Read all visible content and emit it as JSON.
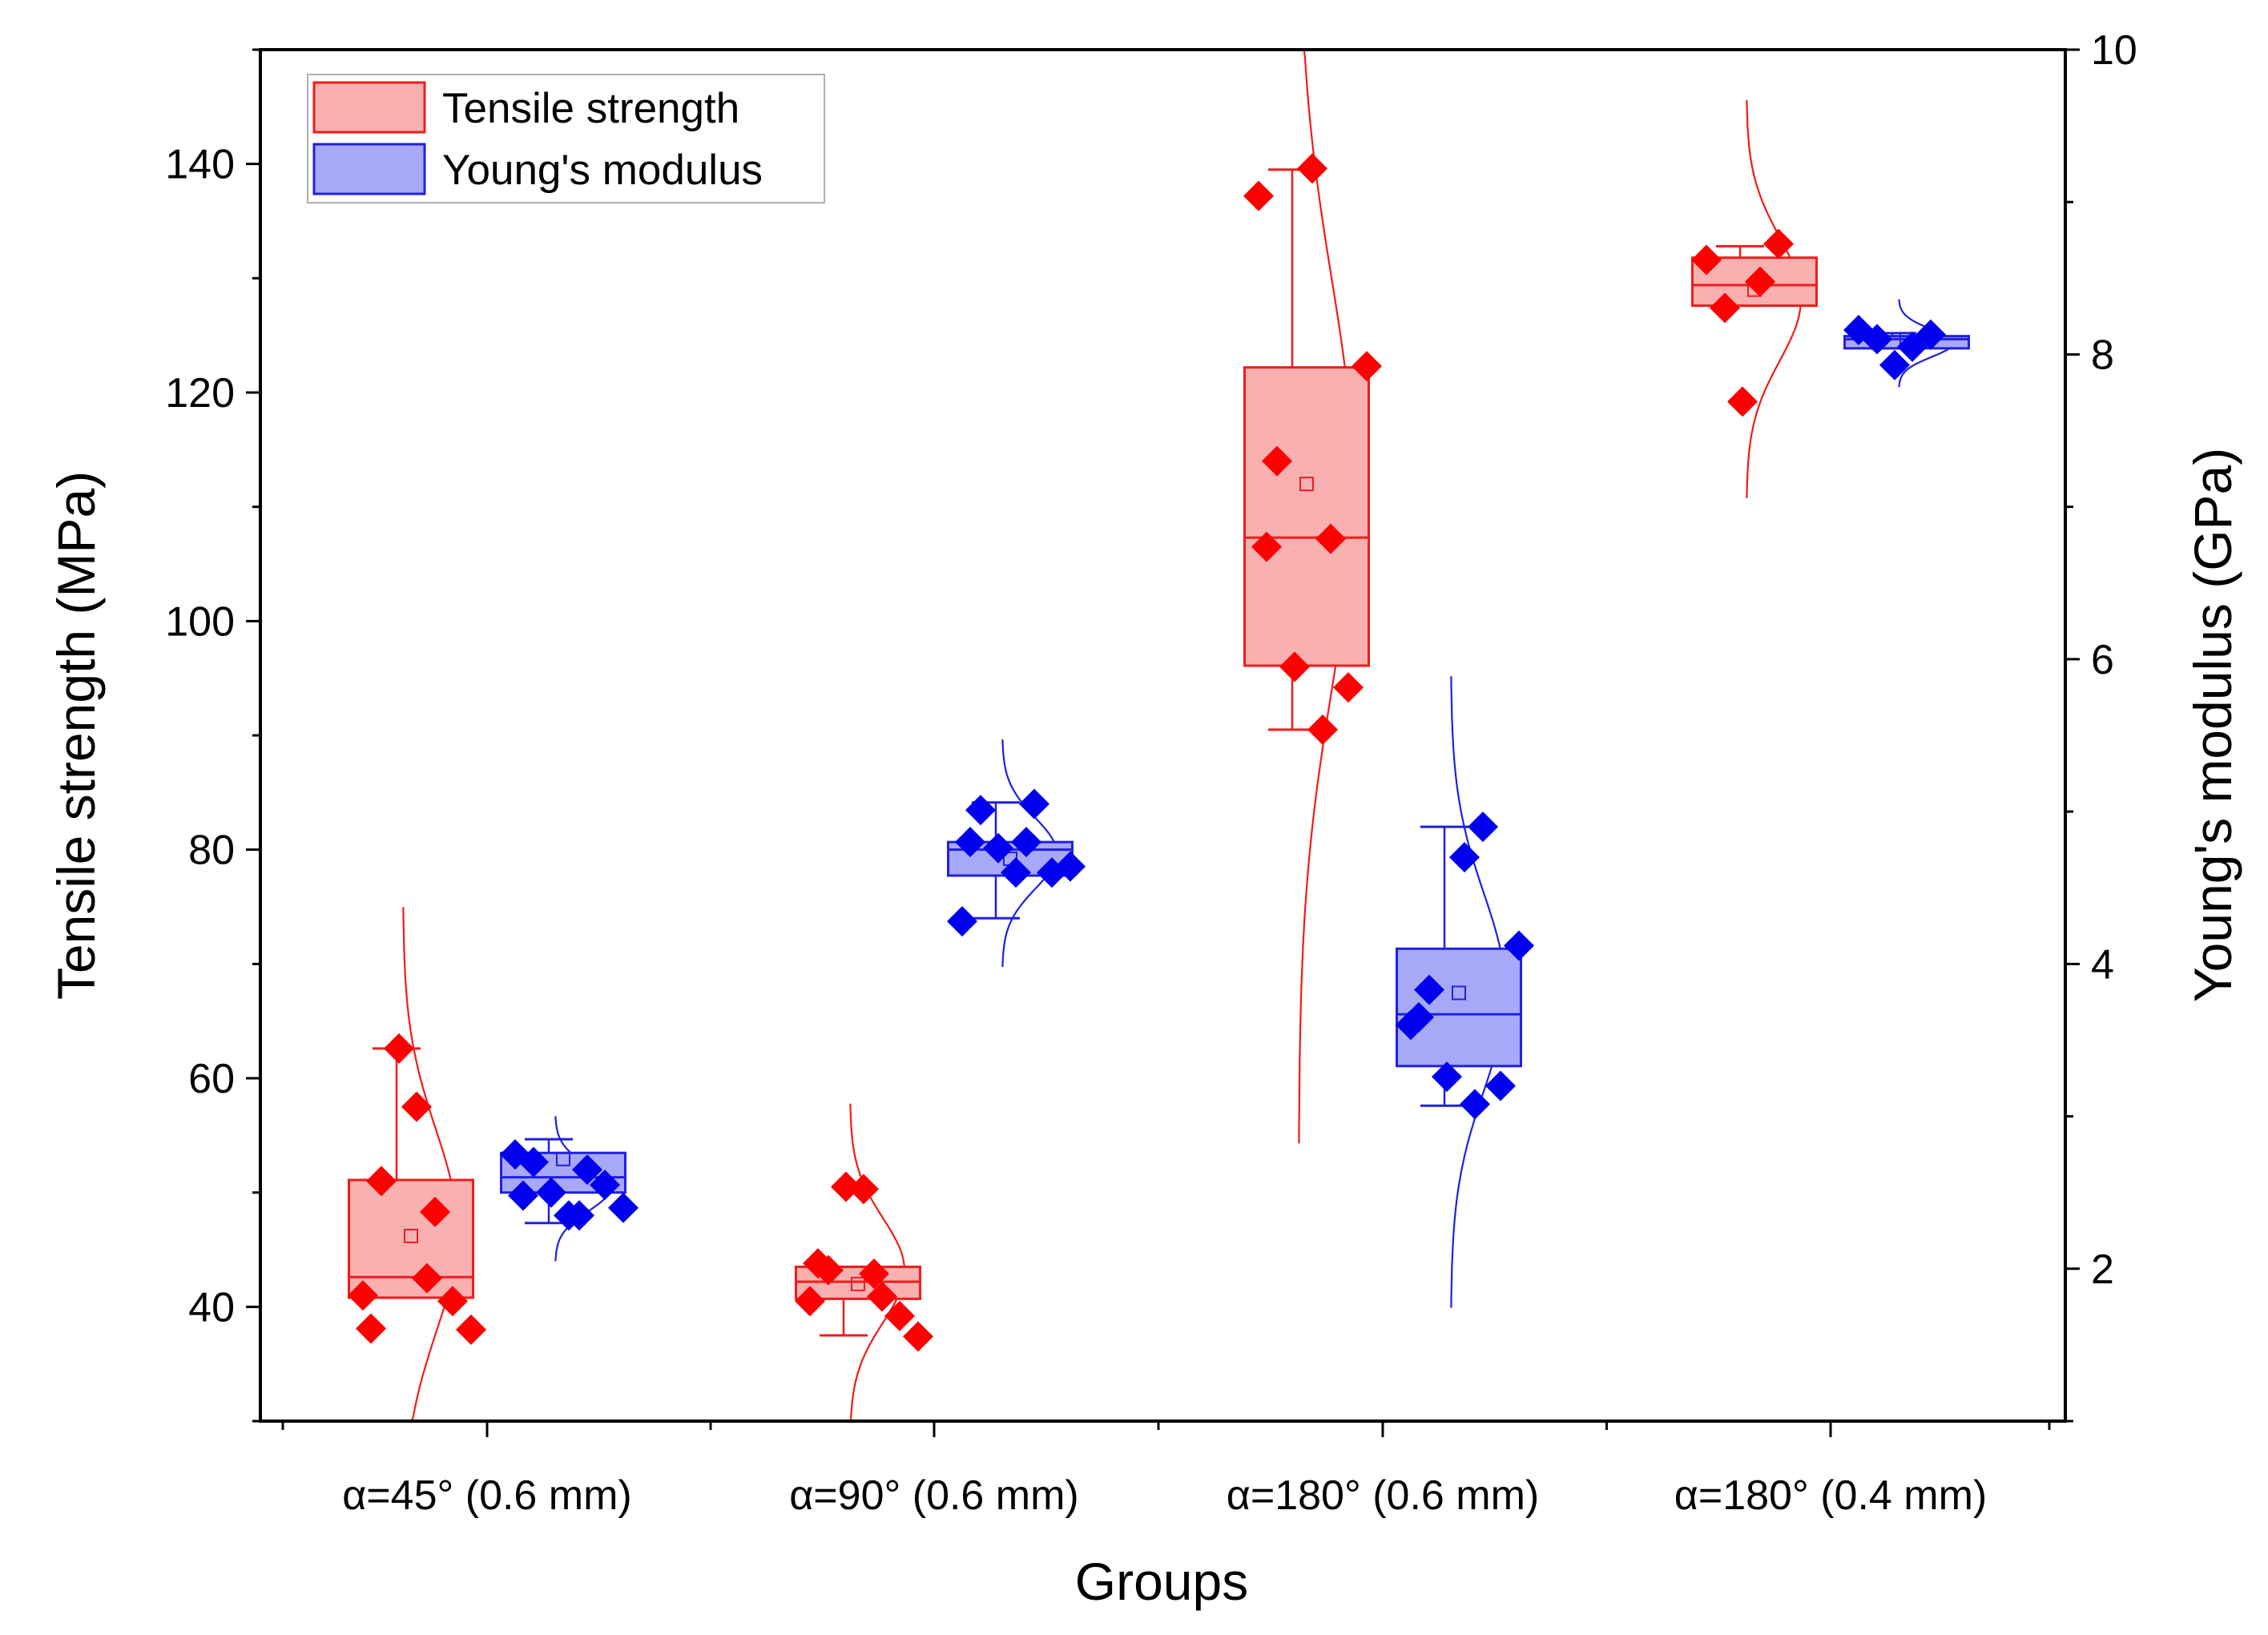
{
  "chart_data": {
    "type": "box",
    "title": "",
    "xlabel": "Groups",
    "ylabel_left": "Tensile strength (MPa)",
    "ylabel_right": "Young's modulus (GPa)",
    "ylim_left": [
      30,
      150
    ],
    "ylim_right": [
      1,
      10
    ],
    "yticks_left": [
      "40",
      "60",
      "80",
      "100",
      "120",
      "140"
    ],
    "yticks_right": [
      "2",
      "4",
      "6",
      "8",
      "10"
    ],
    "legend_position": "top-left",
    "colors": {
      "tensile_fill": "#f8b0b0",
      "tensile_line": "#f01c1c",
      "tensile_marker": "#ff0000",
      "modulus_fill": "#a8a8f8",
      "modulus_line": "#2020e0",
      "modulus_marker": "#0000ee"
    },
    "categories": [
      "α=45° (0.6 mm)",
      "α=90° (0.6 mm)",
      "α=180° (0.6 mm)",
      "α=180° (0.4 mm)"
    ],
    "series": [
      {
        "name": "Tensile strength",
        "axis": "left",
        "boxes": [
          {
            "q1": 40.8,
            "median": 42.6,
            "q3": 51.1,
            "mean": 46.2,
            "whisker_low": 40.8,
            "whisker_high": 62.6,
            "points": [
              41.0,
              51.0,
              62.6,
              57.5,
              48.3,
              40.5,
              38.0,
              38.1,
              42.5
            ]
          },
          {
            "q1": 40.7,
            "median": 42.2,
            "q3": 43.5,
            "mean": 42.0,
            "whisker_low": 37.5,
            "whisker_high": 43.5,
            "points": [
              40.5,
              43.2,
              50.5,
              50.3,
              40.9,
              39.2,
              37.4,
              43.8,
              42.9
            ]
          },
          {
            "q1": 96.1,
            "median": 107.3,
            "q3": 122.2,
            "mean": 112.0,
            "whisker_low": 90.5,
            "whisker_high": 139.5,
            "points": [
              137.2,
              114.0,
              96.0,
              139.6,
              107.2,
              94.2,
              122.3,
              106.5,
              90.5
            ]
          },
          {
            "q1": 127.6,
            "median": 129.4,
            "q3": 131.8,
            "mean": 129.0,
            "whisker_low": 127.6,
            "whisker_high": 132.8,
            "points": [
              131.6,
              127.4,
              119.2,
              129.7,
              133.0
            ]
          }
        ]
      },
      {
        "name": "Young's modulus",
        "axis": "right",
        "boxes": [
          {
            "q1": 2.5,
            "median": 2.6,
            "q3": 2.76,
            "mean": 2.72,
            "whisker_low": 2.3,
            "whisker_high": 2.85,
            "points": [
              2.75,
              2.7,
              2.5,
              2.35,
              2.65,
              2.55,
              2.4,
              2.48,
              2.35
            ]
          },
          {
            "q1": 4.58,
            "median": 4.75,
            "q3": 4.8,
            "mean": 4.69,
            "whisker_low": 4.3,
            "whisker_high": 5.06,
            "points": [
              4.28,
              5.01,
              4.76,
              4.6,
              5.05,
              4.6,
              4.64,
              4.8,
              4.8
            ]
          },
          {
            "q1": 3.33,
            "median": 3.67,
            "q3": 4.1,
            "mean": 3.81,
            "whisker_low": 3.07,
            "whisker_high": 4.9,
            "points": [
              3.6,
              3.83,
              3.26,
              4.7,
              4.9,
              3.2,
              4.12,
              3.65,
              3.08
            ]
          },
          {
            "q1": 8.04,
            "median": 8.1,
            "q3": 8.12,
            "mean": 8.1,
            "whisker_low": 8.04,
            "whisker_high": 8.14,
            "points": [
              8.16,
              8.1,
              7.93,
              8.05,
              8.13
            ]
          }
        ]
      }
    ]
  }
}
